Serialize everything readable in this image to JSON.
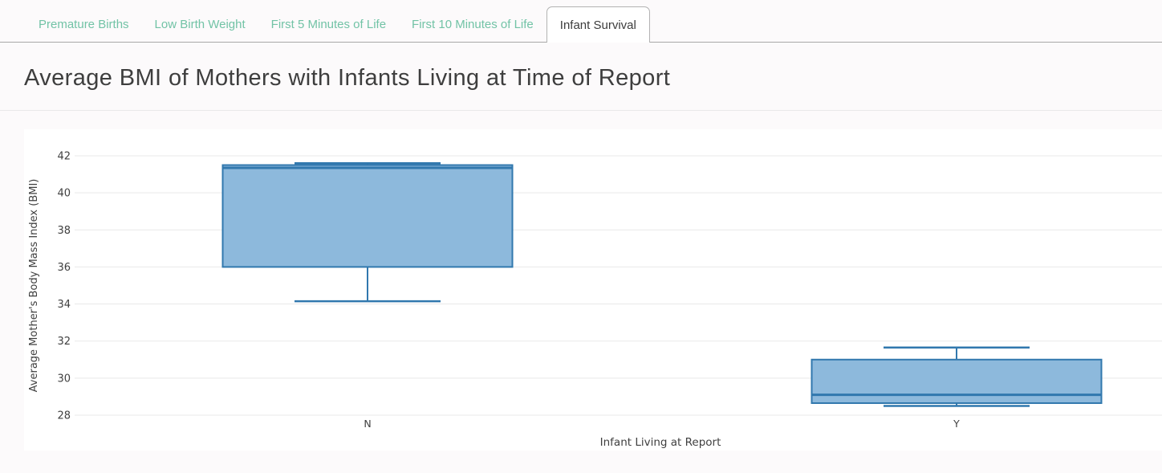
{
  "tabs": [
    {
      "label": "Premature Births",
      "active": false
    },
    {
      "label": "Low Birth Weight",
      "active": false
    },
    {
      "label": "First 5 Minutes of Life",
      "active": false
    },
    {
      "label": "First 10 Minutes of Life",
      "active": false
    },
    {
      "label": "Infant Survival",
      "active": true
    }
  ],
  "page_title": "Average BMI of Mothers with Infants Living at Time of Report",
  "chart_data": {
    "type": "boxplot",
    "title": "Average BMI of Mothers with Infants Living at Time of Report",
    "xlabel": "Infant Living at Report",
    "ylabel": "Average Mother's Body Mass Index (BMI)",
    "categories": [
      "N",
      "Y"
    ],
    "y_ticks": [
      28,
      30,
      32,
      34,
      36,
      38,
      40,
      42
    ],
    "ylim": [
      27.4,
      43.4
    ],
    "grid": true,
    "legend": "none",
    "series": [
      {
        "category": "N",
        "min": 34.15,
        "q1": 36.0,
        "median": 41.35,
        "q3": 41.5,
        "max": 41.6
      },
      {
        "category": "Y",
        "min": 28.5,
        "q1": 28.65,
        "median": 29.1,
        "q3": 31.0,
        "max": 31.65
      }
    ],
    "colors": {
      "box_fill": "#8db9dc",
      "box_line": "#3178ae",
      "grid_line": "#e9e9e9",
      "axis_text": "#3f3f3f",
      "tab_inactive": "#72c3a6",
      "tab_active": "#3c3c3c"
    }
  }
}
